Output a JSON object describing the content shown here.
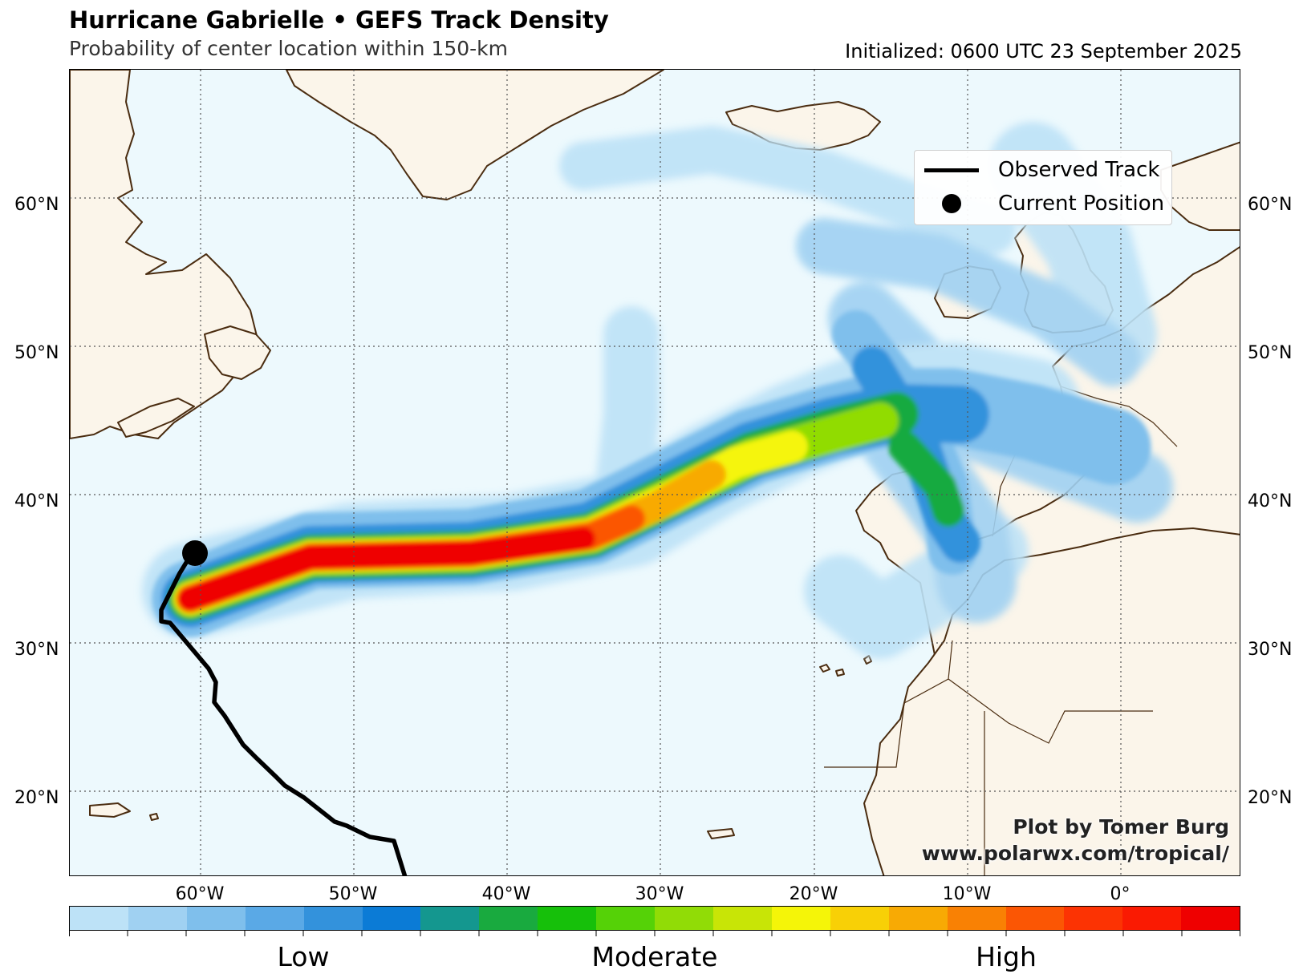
{
  "header": {
    "title": "Hurricane Gabrielle • GEFS Track Density",
    "subtitle": "Probability of center location within 150-km",
    "initialized": "Initialized: 0600 UTC 23 September 2025"
  },
  "map": {
    "lat_labels": [
      "60°N",
      "50°N",
      "40°N",
      "30°N",
      "20°N"
    ],
    "lon_labels": [
      "60°W",
      "50°W",
      "40°W",
      "30°W",
      "20°W",
      "10°W",
      "0°"
    ],
    "ocean_color": "#edf9fd",
    "land_color": "#fbf5ea",
    "coast_color": "#4a2c10",
    "grid_style": "dotted"
  },
  "legend": {
    "observed_track": "Observed Track",
    "current_position": "Current Position"
  },
  "credit": {
    "line1": "Plot by Tomer Burg",
    "line2": "www.polarwx.com/tropical/"
  },
  "colorbar": {
    "colors": [
      "#bde2f7",
      "#a0d1f2",
      "#7fbfec",
      "#5aa9e6",
      "#3392dc",
      "#0b7bd6",
      "#14978f",
      "#19aa3f",
      "#16c00a",
      "#55d207",
      "#91dc06",
      "#c8e506",
      "#f5f508",
      "#f8d006",
      "#f8aa04",
      "#f98104",
      "#fb5604",
      "#fc3303",
      "#fa1a02",
      "#ef0000"
    ],
    "labels": [
      "Low",
      "Moderate",
      "High"
    ]
  }
}
